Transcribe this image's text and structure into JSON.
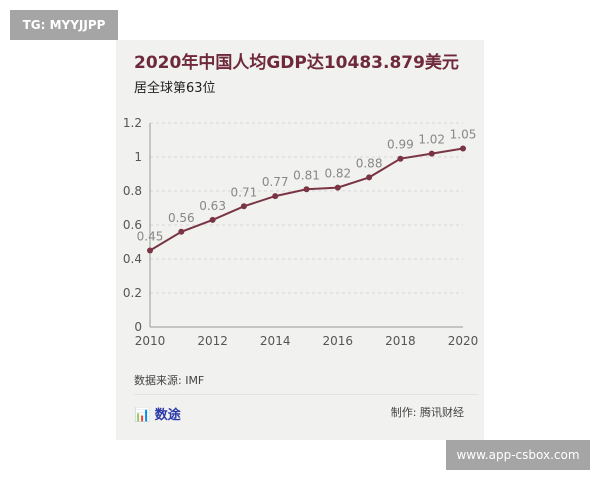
{
  "tag": "TG: MYYJJPP",
  "watermark_url": "www.app-csbox.com",
  "source": "数据来源: IMF",
  "logo": "数途",
  "maker": "制作: 腾讯财经",
  "colors": {
    "line": "#7a3545",
    "title": "#6e2a3c",
    "logo": "#2b3aa8"
  },
  "chart_data": {
    "type": "line",
    "title": "2020年中国人均GDP达10483.879美元",
    "subtitle": "居全球第63位",
    "x": [
      2010,
      2011,
      2012,
      2013,
      2014,
      2015,
      2016,
      2017,
      2018,
      2019,
      2020
    ],
    "values": [
      0.45,
      0.56,
      0.63,
      0.71,
      0.77,
      0.81,
      0.82,
      0.88,
      0.99,
      1.02,
      1.05
    ],
    "data_labels": [
      "0.45",
      "0.56",
      "0.63",
      "0.71",
      "0.77",
      "0.81",
      "0.82",
      "0.88",
      "0.99",
      "1.02",
      "1.05"
    ],
    "xticks": [
      "2010",
      "2012",
      "2014",
      "2016",
      "2018",
      "2020"
    ],
    "yticks": [
      "0",
      "0.2",
      "0.4",
      "0.6",
      "0.8",
      "1",
      "1.2"
    ],
    "ylim": [
      0,
      1.2
    ],
    "xlim": [
      2010,
      2020
    ],
    "grid": "horizontal dashed"
  }
}
